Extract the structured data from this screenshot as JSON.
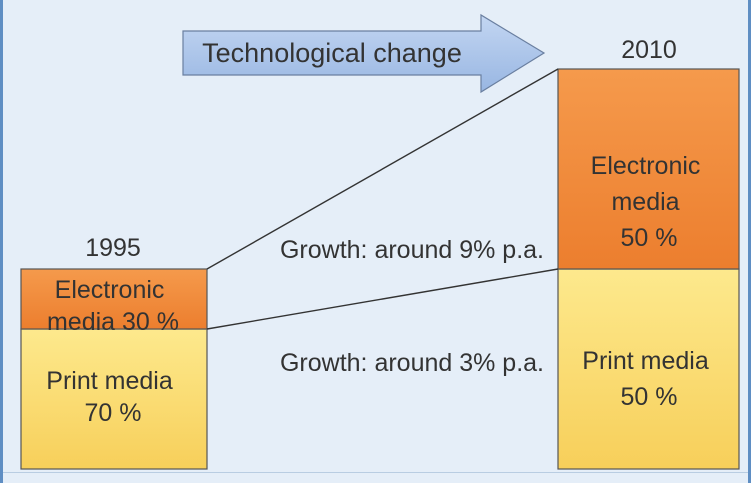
{
  "chart_data": {
    "type": "bar",
    "stacked": true,
    "categories": [
      "1995",
      "2010"
    ],
    "series": [
      {
        "name": "Print media",
        "values": [
          70,
          50
        ],
        "color": "#fadc6e"
      },
      {
        "name": "Electronic media",
        "values": [
          30,
          50
        ],
        "color": "#f08a3c"
      }
    ],
    "segment_labels": {
      "1995": {
        "Electronic media": "Electronic media 30 %",
        "Print media": "Print media 70 %"
      },
      "2010": {
        "Electronic media": "Electronic media 50 %",
        "Print media": "Print media 50 %"
      }
    },
    "annotations": {
      "arrow": "Technological change",
      "growth_electronic": "Growth: around 9% p.a.",
      "growth_print": "Growth: around 3% p.a."
    },
    "arrow_color": "#a9c4ea",
    "background_color": "#e5eef8"
  }
}
